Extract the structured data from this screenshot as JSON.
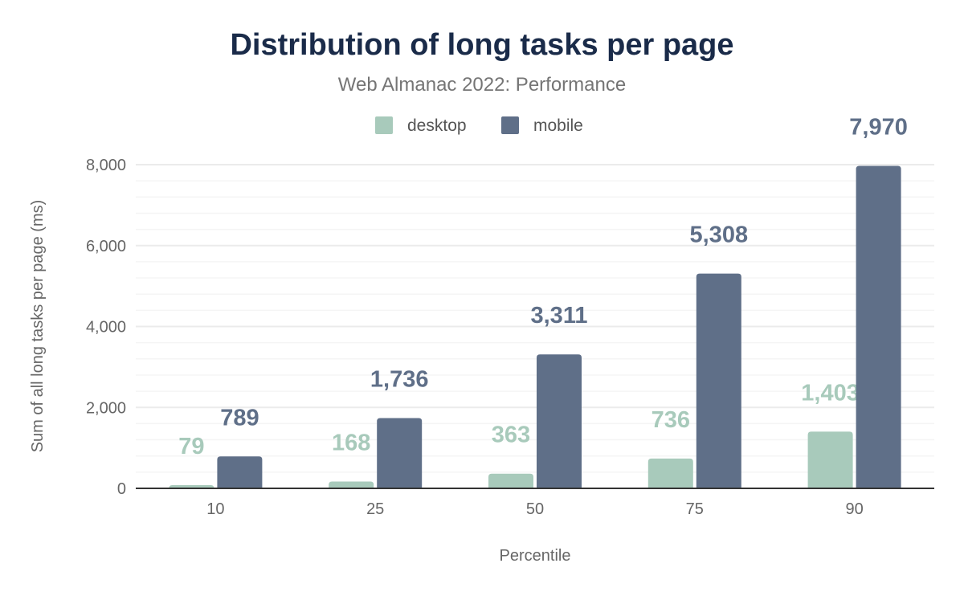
{
  "chart_data": {
    "type": "bar",
    "title": "Distribution of long tasks per page",
    "subtitle": "Web Almanac 2022: Performance",
    "xlabel": "Percentile",
    "ylabel": "Sum of all long tasks per page (ms)",
    "categories": [
      "10",
      "25",
      "50",
      "75",
      "90"
    ],
    "series": [
      {
        "name": "desktop",
        "color": "#a8cabb",
        "values": [
          79,
          168,
          363,
          736,
          1403
        ],
        "labels": [
          "79",
          "168",
          "363",
          "736",
          "1,403"
        ]
      },
      {
        "name": "mobile",
        "color": "#5f6f88",
        "values": [
          789,
          1736,
          3311,
          5308,
          7970
        ],
        "labels": [
          "789",
          "1,736",
          "3,311",
          "5,308",
          "7,970"
        ]
      }
    ],
    "ylim": [
      0,
      8000
    ],
    "yticks": [
      0,
      2000,
      4000,
      6000,
      8000
    ],
    "ytick_labels": [
      "0",
      "2,000",
      "4,000",
      "6,000",
      "8,000"
    ],
    "minor_grid_step": 400,
    "grid": true,
    "legend_position": "top-center",
    "title_color": "#1a2b49"
  }
}
